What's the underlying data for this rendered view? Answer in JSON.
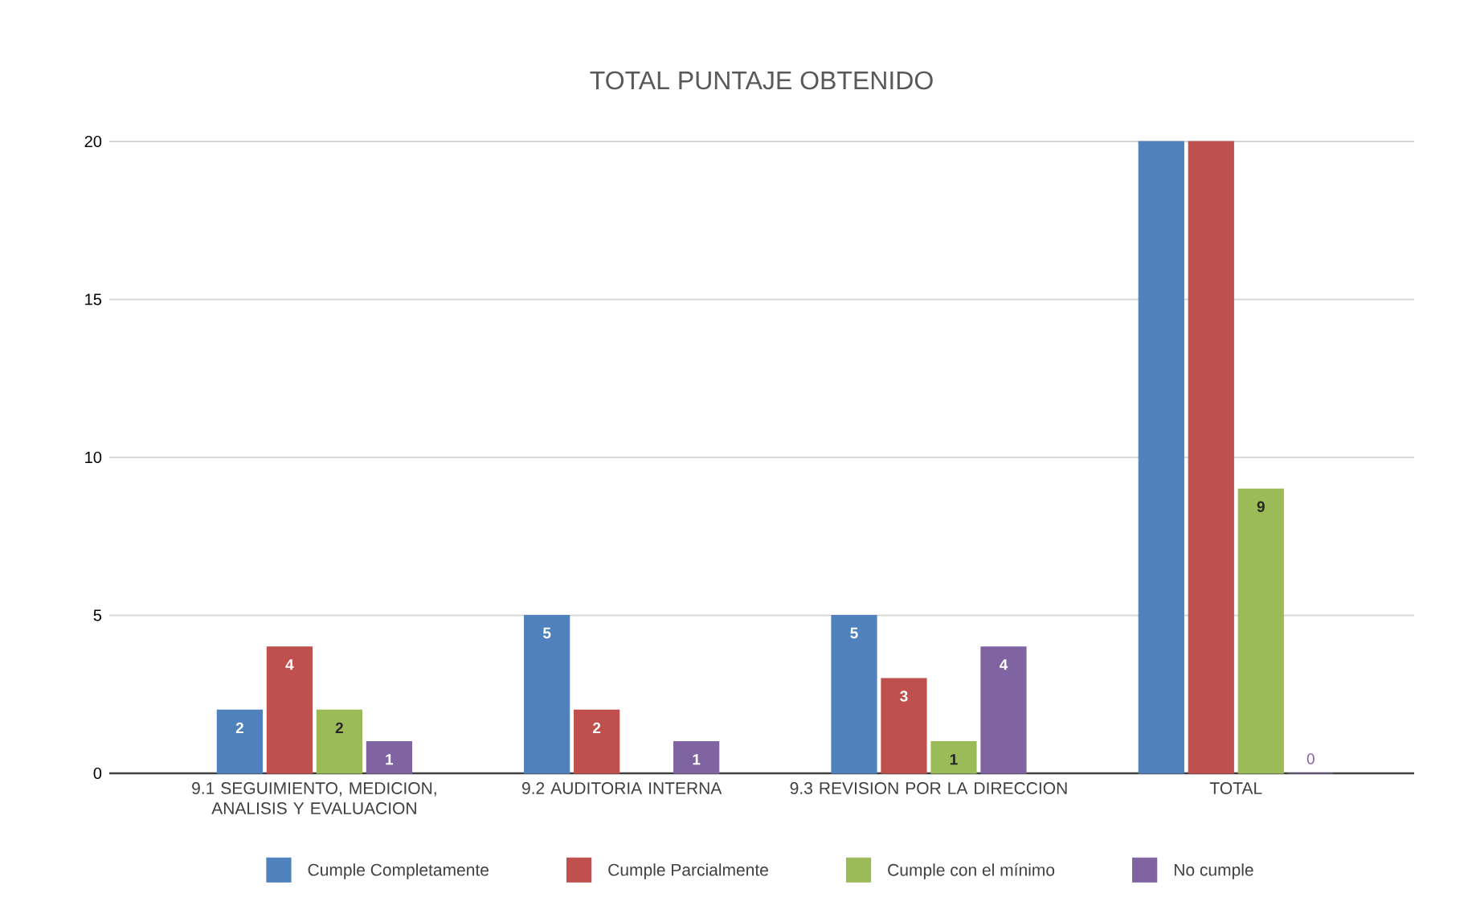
{
  "chart_data": {
    "type": "bar",
    "title": "TOTAL PUNTAJE OBTENIDO",
    "categories": [
      "9.1 SEGUIMIENTO, MEDICION, ANALISIS Y EVALUACION",
      "9.2 AUDITORIA INTERNA",
      "9.3 REVISION POR LA DIRECCION",
      "TOTAL"
    ],
    "series": [
      {
        "name": "Cumple Completamente",
        "color": "#4f81bd",
        "values": [
          2,
          5,
          5,
          20
        ],
        "value_labels": [
          "2",
          "5",
          "5",
          null
        ]
      },
      {
        "name": "Cumple Parcialmente",
        "color": "#c0504d",
        "values": [
          4,
          2,
          3,
          20
        ],
        "value_labels": [
          "4",
          "2",
          "3",
          null
        ]
      },
      {
        "name": "Cumple con el mínimo",
        "color": "#9bbb59",
        "values": [
          2,
          null,
          1,
          9
        ],
        "value_labels": [
          "2",
          null,
          "1",
          "9"
        ]
      },
      {
        "name": "No cumple",
        "color": "#8064a2",
        "values": [
          1,
          1,
          4,
          0
        ],
        "value_labels": [
          "1",
          "1",
          "4",
          "0"
        ]
      }
    ],
    "ylim": [
      0,
      20
    ],
    "yticks": [
      0,
      5,
      10,
      15,
      20
    ],
    "grid": "y",
    "legend": "bottom"
  }
}
